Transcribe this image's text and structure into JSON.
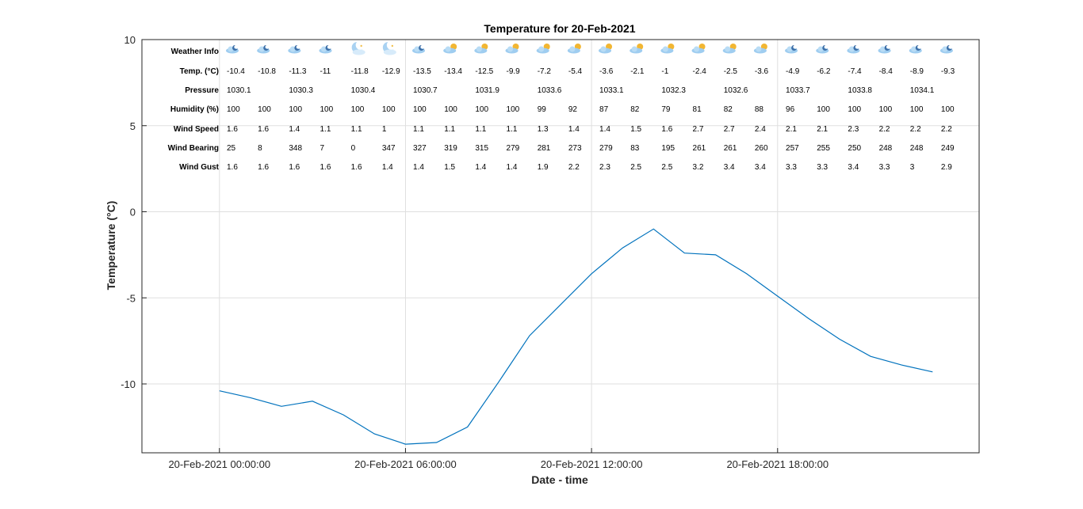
{
  "chart_data": {
    "type": "line",
    "title": "Temperature for 20-Feb-2021",
    "xlabel": "Date - time",
    "ylabel": "Temperature (°C)",
    "ylim": [
      -14,
      10
    ],
    "yticks": [
      10,
      5,
      0,
      -5,
      -10
    ],
    "ytick_labels": [
      "10",
      "5",
      "0",
      "-5",
      "-10"
    ],
    "xlim_hours": [
      -2.5,
      24.5
    ],
    "xtick_hours": [
      0,
      6,
      12,
      18
    ],
    "xtick_labels": [
      "20-Feb-2021 00:00:00",
      "20-Feb-2021 06:00:00",
      "20-Feb-2021 12:00:00",
      "20-Feb-2021 18:00:00"
    ],
    "grid": true,
    "line_color": "#0072BD",
    "x_hours": [
      0,
      1,
      2,
      3,
      4,
      5,
      6,
      7,
      8,
      9,
      10,
      11,
      12,
      13,
      14,
      15,
      16,
      17,
      18,
      19,
      20,
      21,
      22,
      23
    ],
    "series": [
      {
        "values": [
          -10.4,
          -10.8,
          -11.3,
          -11,
          -11.8,
          -12.9,
          -13.5,
          -13.4,
          -12.5,
          -9.9,
          -7.2,
          -5.4,
          -3.6,
          -2.1,
          -1,
          -2.4,
          -2.5,
          -3.6,
          -4.9,
          -6.2,
          -7.4,
          -8.4,
          -8.9,
          -9.3
        ]
      }
    ],
    "weather_table": {
      "rows": [
        {
          "label": "Weather Info",
          "kind": "icons",
          "values": [
            "cloud-night",
            "cloud-night",
            "cloud-night",
            "cloud-night",
            "moon-cloud",
            "moon-cloud",
            "cloud-night",
            "cloud-sun",
            "cloud-sun",
            "cloud-sun",
            "cloud-sun",
            "cloud-sun",
            "cloud-sun",
            "cloud-sun",
            "cloud-sun",
            "cloud-sun",
            "cloud-sun",
            "cloud-sun",
            "cloud-night",
            "cloud-night",
            "cloud-night",
            "cloud-night",
            "cloud-night",
            "cloud-night"
          ]
        },
        {
          "label": "Temp. (°C)",
          "values": [
            "-10.4",
            "-10.8",
            "-11.3",
            "-11",
            "-11.8",
            "-12.9",
            "-13.5",
            "-13.4",
            "-12.5",
            "-9.9",
            "-7.2",
            "-5.4",
            "-3.6",
            "-2.1",
            "-1",
            "-2.4",
            "-2.5",
            "-3.6",
            "-4.9",
            "-6.2",
            "-7.4",
            "-8.4",
            "-8.9",
            "-9.3"
          ]
        },
        {
          "label": "Pressure",
          "values": [
            "1030.1",
            "",
            "1030.3",
            "",
            "1030.4",
            "",
            "1030.7",
            "",
            "1031.9",
            "",
            "1033.6",
            "",
            "1033.1",
            "",
            "1032.3",
            "",
            "1032.6",
            "",
            "1033.7",
            "",
            "1033.8",
            "",
            "1034.1",
            ""
          ]
        },
        {
          "label": "Humidity (%)",
          "values": [
            "100",
            "100",
            "100",
            "100",
            "100",
            "100",
            "100",
            "100",
            "100",
            "100",
            "99",
            "92",
            "87",
            "82",
            "79",
            "81",
            "82",
            "88",
            "96",
            "100",
            "100",
            "100",
            "100",
            "100"
          ]
        },
        {
          "label": "Wind Speed",
          "values": [
            "1.6",
            "1.6",
            "1.4",
            "1.1",
            "1.1",
            "1",
            "1.1",
            "1.1",
            "1.1",
            "1.1",
            "1.3",
            "1.4",
            "1.4",
            "1.5",
            "1.6",
            "2.7",
            "2.7",
            "2.4",
            "2.1",
            "2.1",
            "2.3",
            "2.2",
            "2.2",
            "2.2"
          ]
        },
        {
          "label": "Wind Bearing",
          "values": [
            "25",
            "8",
            "348",
            "7",
            "0",
            "347",
            "327",
            "319",
            "315",
            "279",
            "281",
            "273",
            "279",
            "83",
            "195",
            "261",
            "261",
            "260",
            "257",
            "255",
            "250",
            "248",
            "248",
            "249"
          ]
        },
        {
          "label": "Wind Gust",
          "values": [
            "1.6",
            "1.6",
            "1.6",
            "1.6",
            "1.6",
            "1.4",
            "1.4",
            "1.5",
            "1.4",
            "1.4",
            "1.9",
            "2.2",
            "2.3",
            "2.5",
            "2.5",
            "3.2",
            "3.4",
            "3.4",
            "3.3",
            "3.3",
            "3.4",
            "3.3",
            "3",
            "2.9"
          ]
        }
      ]
    }
  }
}
